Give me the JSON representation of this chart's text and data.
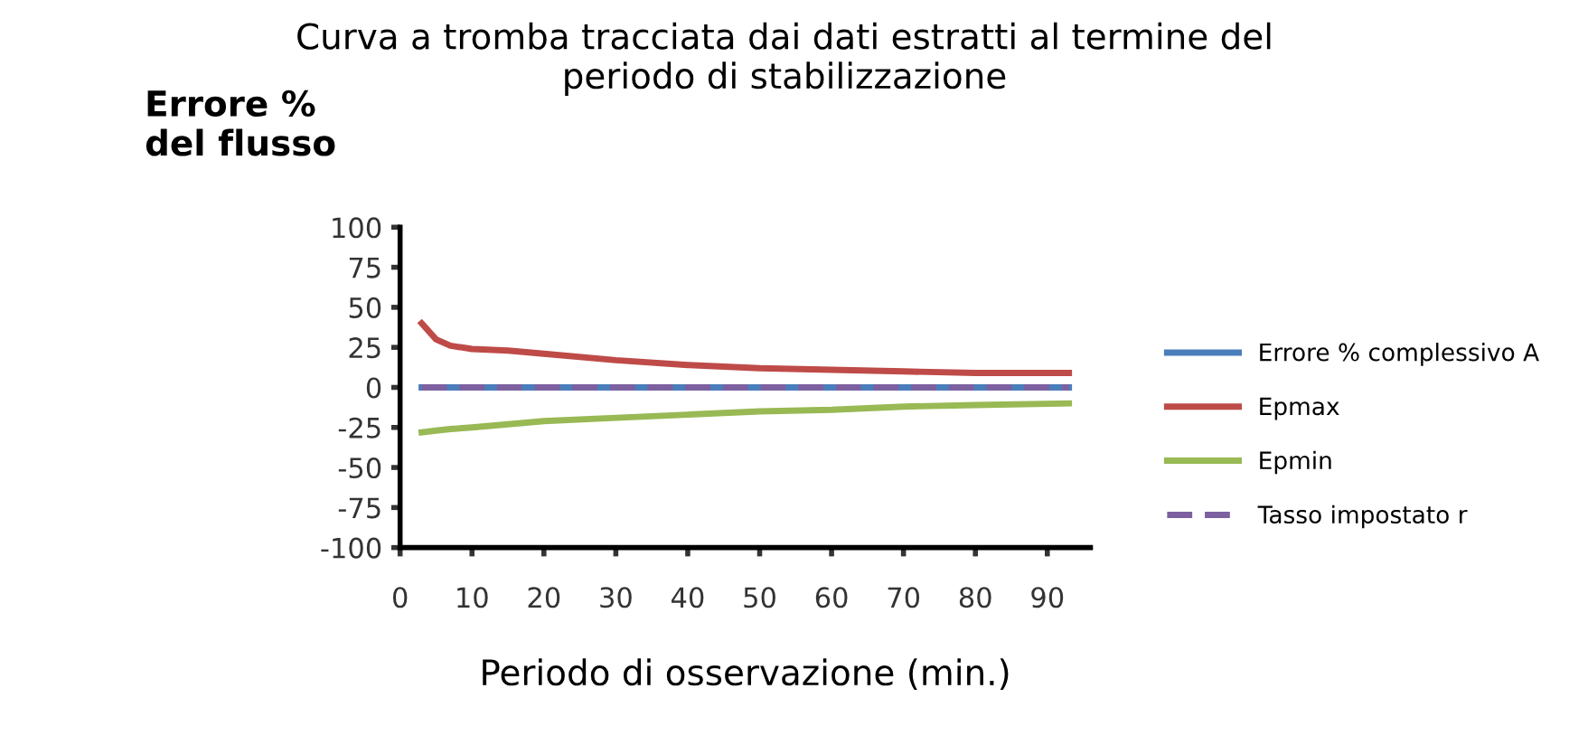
{
  "chart_data": {
    "type": "line",
    "title": "Curva a tromba tracciata dai dati estratti al termine del\nperiodo di stabilizzazione",
    "xlabel": "Periodo di osservazione (min.)",
    "ylabel": "Errore %\ndel flusso",
    "x": [
      3,
      5,
      7,
      10,
      15,
      20,
      30,
      40,
      50,
      60,
      70,
      80,
      93
    ],
    "series": [
      {
        "name": "Errore % complessivo A",
        "color": "#4a7ebb",
        "values": [
          0,
          0,
          0,
          0,
          0,
          0,
          0,
          0,
          0,
          0,
          0,
          0,
          0
        ]
      },
      {
        "name": "Epmax",
        "color": "#be4b48",
        "values": [
          40,
          30,
          26,
          24,
          23,
          21,
          17,
          14,
          12,
          11,
          10,
          9,
          9
        ]
      },
      {
        "name": "Epmin",
        "color": "#98b954",
        "values": [
          -28,
          -27,
          -26,
          -25,
          -23,
          -21,
          -19,
          -17,
          -15,
          -14,
          -12,
          -11,
          -10
        ]
      },
      {
        "name": "Tasso impostato r",
        "color": "#7d60a0",
        "values": [
          0,
          0,
          0,
          0,
          0,
          0,
          0,
          0,
          0,
          0,
          0,
          0,
          0
        ],
        "line_style": "dashed"
      }
    ],
    "xlim": [
      0,
      96
    ],
    "ylim": [
      -100,
      100
    ],
    "xticks": [
      0,
      10,
      20,
      30,
      40,
      50,
      60,
      70,
      80,
      90
    ],
    "yticks": [
      -100,
      -75,
      -50,
      -25,
      0,
      25,
      50,
      75,
      100
    ],
    "grid": false,
    "legend": "right",
    "marker": "none"
  }
}
